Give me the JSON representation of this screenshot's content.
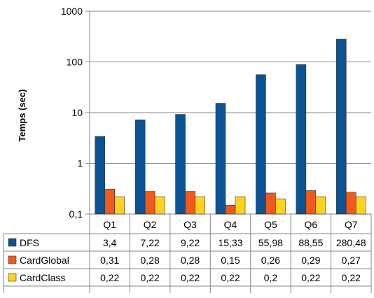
{
  "chart_data": {
    "type": "bar",
    "ylabel": "Temps (sec)",
    "yscale": "log",
    "ylim": [
      0.1,
      1000
    ],
    "ytick_labels": [
      "1000",
      "100",
      "10",
      "1",
      "0,1"
    ],
    "grid": true,
    "legend_placement": "data-table-left",
    "categories": [
      "Q1",
      "Q2",
      "Q3",
      "Q4",
      "Q5",
      "Q6",
      "Q7"
    ],
    "series": [
      {
        "name": "DFS",
        "color": "#0B5394",
        "values": [
          3.4,
          7.22,
          9.22,
          15.33,
          55.98,
          88.55,
          280.48
        ],
        "labels": [
          "3,4",
          "7,22",
          "9,22",
          "15,33",
          "55,98",
          "88,55",
          "280,48"
        ]
      },
      {
        "name": "CardGlobal",
        "color": "#F05A1A",
        "values": [
          0.31,
          0.28,
          0.28,
          0.15,
          0.26,
          0.29,
          0.27
        ],
        "labels": [
          "0,31",
          "0,28",
          "0,28",
          "0,15",
          "0,26",
          "0,29",
          "0,27"
        ]
      },
      {
        "name": "CardClass",
        "color": "#FFD21F",
        "values": [
          0.22,
          0.22,
          0.22,
          0.22,
          0.2,
          0.22,
          0.22
        ],
        "labels": [
          "0,22",
          "0,22",
          "0,22",
          "0,22",
          "0,2",
          "0,22",
          "0,22"
        ]
      }
    ]
  }
}
